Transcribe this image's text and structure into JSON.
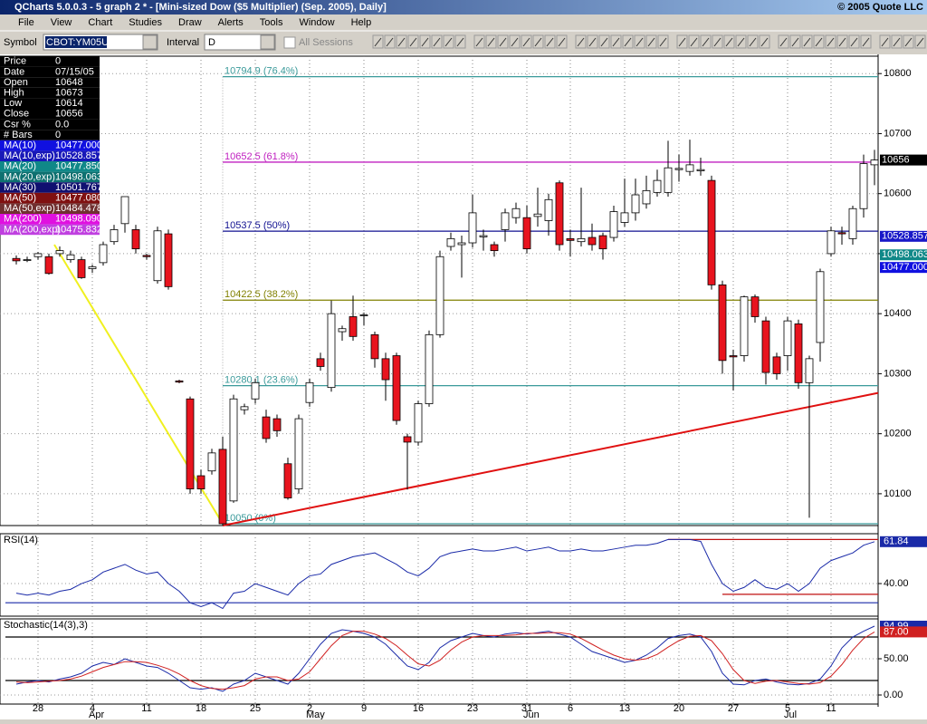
{
  "window": {
    "title": "QCharts 5.0.0.3 - 5 graph 2 * - [Mini-sized Dow ($5 Multiplier) (Sep. 2005), Daily]",
    "copyright": "© 2005 Quote LLC"
  },
  "menu": [
    "File",
    "View",
    "Chart",
    "Studies",
    "Draw",
    "Alerts",
    "Tools",
    "Window",
    "Help"
  ],
  "toolbar": {
    "symbol_label": "Symbol",
    "symbol": "CBOT:YM05U",
    "interval_label": "Interval",
    "interval": "D",
    "sessions": "All Sessions"
  },
  "info_panel": [
    {
      "label": "Price",
      "value": "0",
      "color": "#000000"
    },
    {
      "label": "Date",
      "value": "07/15/05",
      "color": "#000000"
    },
    {
      "label": "Open",
      "value": "10648",
      "color": "#000000"
    },
    {
      "label": "High",
      "value": "10673",
      "color": "#000000"
    },
    {
      "label": "Low",
      "value": "10614",
      "color": "#000000"
    },
    {
      "label": "Close",
      "value": "10656",
      "color": "#000000"
    },
    {
      "label": "Csr %",
      "value": "0.0",
      "color": "#000000"
    },
    {
      "label": "# Bars",
      "value": "0",
      "color": "#000000"
    },
    {
      "label": "MA(10)",
      "value": "10477.000",
      "color": "#1010e0"
    },
    {
      "label": "MA(10,exp)",
      "value": "10528.857",
      "color": "#1818b8"
    },
    {
      "label": "MA(20)",
      "value": "10477.850",
      "color": "#108888"
    },
    {
      "label": "MA(20,exp)",
      "value": "10498.063",
      "color": "#0e7070"
    },
    {
      "label": "MA(30)",
      "value": "10501.767",
      "color": "#101070"
    },
    {
      "label": "MA(50)",
      "value": "10477.080",
      "color": "#801010"
    },
    {
      "label": "MA(50,exp)",
      "value": "10484.478",
      "color": "#703030"
    },
    {
      "label": "MA(200)",
      "value": "10498.090",
      "color": "#e010e0"
    },
    {
      "label": "MA(200,exp)",
      "value": "10475.832",
      "color": "#c040e0"
    }
  ],
  "chart_data": [
    {
      "type": "candlestick",
      "categories": [
        null,
        null,
        "28",
        null,
        null,
        null,
        null,
        "4",
        null,
        null,
        null,
        null,
        "11",
        null,
        null,
        null,
        null,
        "18",
        null,
        null,
        null,
        null,
        "25",
        null,
        null,
        null,
        null,
        "2",
        null,
        null,
        null,
        null,
        "9",
        null,
        null,
        null,
        null,
        "16",
        null,
        null,
        null,
        null,
        "23",
        null,
        null,
        null,
        null,
        "31",
        null,
        null,
        null,
        "6",
        null,
        null,
        null,
        null,
        "13",
        null,
        null,
        null,
        null,
        "20",
        null,
        null,
        null,
        null,
        "27",
        null,
        null,
        null,
        null,
        "5",
        null,
        null,
        null,
        "11",
        null,
        null,
        null,
        null
      ],
      "months": [
        null,
        null,
        null,
        null,
        null,
        null,
        null,
        "Apr",
        null,
        null,
        null,
        null,
        null,
        null,
        null,
        null,
        null,
        null,
        null,
        null,
        null,
        null,
        null,
        null,
        null,
        null,
        null,
        "May",
        null,
        null,
        null,
        null,
        null,
        null,
        null,
        null,
        null,
        null,
        null,
        null,
        null,
        null,
        null,
        null,
        null,
        null,
        null,
        "Jun",
        null,
        null,
        null,
        null,
        null,
        null,
        null,
        null,
        null,
        null,
        null,
        null,
        null,
        null,
        null,
        null,
        null,
        null,
        null,
        null,
        null,
        null,
        null,
        "Jul",
        null,
        null,
        null,
        null,
        null,
        null,
        null,
        null
      ],
      "open": [
        10492,
        10490,
        10495,
        10495,
        10500,
        10490,
        10490,
        10475,
        10485,
        10520,
        10550,
        10540,
        10497,
        10455,
        10533,
        10288,
        10258,
        10130,
        10138,
        10174,
        10088,
        10240,
        10258,
        10228,
        10225,
        10150,
        10108,
        10252,
        10325,
        10277,
        10370,
        10395,
        10397,
        10365,
        10325,
        10330,
        10195,
        10186,
        10250,
        10365,
        10512,
        10515,
        10518,
        10528,
        10515,
        10540,
        10560,
        10560,
        10562,
        10555,
        10618,
        10525,
        10520,
        10527,
        10530,
        10527,
        10552,
        10568,
        10583,
        10602,
        10602,
        10640,
        10637,
        10638,
        10622,
        10448,
        10330,
        10330,
        10428,
        10388,
        10328,
        10330,
        10383,
        10285,
        10352,
        10500,
        10535,
        10525,
        10575,
        10648
      ],
      "high": [
        10497,
        10495,
        10503,
        10500,
        10512,
        10505,
        10495,
        10482,
        10520,
        10548,
        10590,
        10548,
        10500,
        10545,
        10540,
        10290,
        10262,
        10140,
        10175,
        10195,
        10265,
        10250,
        10292,
        10240,
        10232,
        10160,
        10232,
        10292,
        10335,
        10422,
        10380,
        10430,
        10402,
        10370,
        10335,
        10335,
        10200,
        10255,
        10372,
        10505,
        10535,
        10530,
        10598,
        10540,
        10520,
        10575,
        10585,
        10580,
        10610,
        10600,
        10622,
        10540,
        10610,
        10550,
        10535,
        10580,
        10625,
        10625,
        10630,
        10640,
        10688,
        10665,
        10690,
        10660,
        10630,
        10455,
        10340,
        10430,
        10432,
        10395,
        10335,
        10395,
        10390,
        10330,
        10475,
        10545,
        10545,
        10580,
        10665,
        10673
      ],
      "low": [
        10482,
        10486,
        10490,
        10465,
        10495,
        10485,
        10458,
        10468,
        10480,
        10515,
        10535,
        10500,
        10490,
        10450,
        10440,
        10284,
        10100,
        10100,
        10132,
        10047,
        10085,
        10232,
        10250,
        10185,
        10195,
        10090,
        10100,
        10245,
        10305,
        10270,
        10355,
        10355,
        10380,
        10310,
        10255,
        10215,
        10107,
        10180,
        10245,
        10360,
        10505,
        10460,
        10510,
        10505,
        10495,
        10520,
        10550,
        10500,
        10545,
        10530,
        10505,
        10495,
        10512,
        10505,
        10490,
        10520,
        10545,
        10555,
        10575,
        10595,
        10595,
        10620,
        10630,
        10630,
        10440,
        10300,
        10272,
        10320,
        10385,
        10282,
        10290,
        10305,
        10275,
        10060,
        10320,
        10495,
        10515,
        10515,
        10560,
        10614
      ],
      "close": [
        10488,
        10490,
        10500,
        10467,
        10505,
        10498,
        10460,
        10478,
        10515,
        10540,
        10595,
        10508,
        10495,
        10538,
        10445,
        10286,
        10108,
        10108,
        10168,
        10050,
        10258,
        10245,
        10285,
        10192,
        10205,
        10093,
        10225,
        10285,
        10312,
        10400,
        10375,
        10362,
        10398,
        10325,
        10290,
        10222,
        10186,
        10250,
        10365,
        10495,
        10525,
        10518,
        10568,
        10530,
        10505,
        10568,
        10575,
        10508,
        10566,
        10590,
        10515,
        10522,
        10525,
        10515,
        10508,
        10570,
        10568,
        10598,
        10605,
        10622,
        10643,
        10642,
        10648,
        10640,
        10448,
        10322,
        10328,
        10428,
        10395,
        10302,
        10300,
        10388,
        10285,
        10325,
        10470,
        10538,
        10533,
        10575,
        10650,
        10656
      ],
      "up_color": "#ffffff",
      "down_color": "#e8141e",
      "ylim": [
        10047,
        10829
      ],
      "yticks": [
        10100,
        10200,
        10300,
        10400,
        10500,
        10600,
        10700,
        10800
      ],
      "fib_levels": [
        {
          "value": 10794.9,
          "label": "10794.9 (76.4%)",
          "color": "#3a9a9a"
        },
        {
          "value": 10652.5,
          "label": "10652.5 (61.8%)",
          "color": "#c020c0"
        },
        {
          "value": 10537.5,
          "label": "10537.5 (50%)",
          "color": "#101090"
        },
        {
          "value": 10422.5,
          "label": "10422.5 (38.2%)",
          "color": "#808000"
        },
        {
          "value": 10280.1,
          "label": "10280.1 (23.6%)",
          "color": "#3a9a9a"
        },
        {
          "value": 10050,
          "label": "10050 (0%)",
          "color": "#3a9a9a"
        }
      ],
      "price_labels": [
        {
          "value": 10656,
          "label": "10656",
          "color": "#000000"
        },
        {
          "value": 10528.857,
          "label": "10528.857",
          "color": "#1818c8"
        },
        {
          "value": 10498.063,
          "label": "10498.063",
          "color": "#108888"
        },
        {
          "value": 10477,
          "label": "10477.000",
          "color": "#1010e0"
        }
      ],
      "trendlines": [
        {
          "x": [
            3.5,
            19
          ],
          "y": [
            10515,
            10050
          ],
          "color": "#f0f020"
        },
        {
          "x": [
            19,
            80
          ],
          "y": [
            10047,
            10268
          ],
          "color": "#e01010"
        }
      ]
    },
    {
      "type": "line",
      "title": "RSI(14)",
      "series": [
        {
          "name": "RSI",
          "color": "#1a2aa8",
          "values": [
            35,
            34,
            35,
            34,
            36,
            37,
            40,
            42,
            46,
            48,
            50,
            47,
            45,
            46,
            40,
            36,
            30,
            28,
            30,
            27,
            35,
            36,
            40,
            38,
            36,
            34,
            40,
            44,
            45,
            50,
            52,
            54,
            55,
            56,
            53,
            50,
            46,
            44,
            48,
            54,
            56,
            57,
            58,
            57,
            57,
            58,
            59,
            57,
            58,
            59,
            57,
            57,
            58,
            57,
            57,
            58,
            59,
            60,
            60,
            61,
            63,
            63,
            63,
            62,
            50,
            40,
            36,
            38,
            42,
            38,
            37,
            40,
            36,
            40,
            48,
            52,
            54,
            56,
            60,
            61.84
          ]
        }
      ],
      "value_labels": [
        "61.84"
      ],
      "levels": [
        {
          "value": 30,
          "color": "#1a2aa8",
          "x": [
            -1,
            80
          ]
        },
        {
          "value": 63,
          "color": "#c01010",
          "x": [
            60,
            80
          ]
        },
        {
          "value": 34.4,
          "color": "#c01010",
          "x": [
            65,
            80
          ]
        }
      ],
      "ylim": [
        23,
        66
      ],
      "yticks": [
        {
          "value": 40,
          "label": "40.00"
        }
      ]
    },
    {
      "type": "line",
      "title": "Stochastic(14(3),3)",
      "series": [
        {
          "name": "%K",
          "color": "#1a2aa8",
          "values": [
            15,
            18,
            20,
            18,
            22,
            25,
            30,
            40,
            45,
            42,
            50,
            45,
            40,
            38,
            30,
            20,
            10,
            8,
            10,
            5,
            15,
            20,
            30,
            25,
            20,
            15,
            30,
            50,
            70,
            85,
            90,
            88,
            85,
            80,
            70,
            55,
            40,
            35,
            45,
            65,
            75,
            80,
            85,
            82,
            80,
            84,
            86,
            84,
            86,
            88,
            84,
            80,
            70,
            60,
            55,
            50,
            45,
            48,
            55,
            65,
            78,
            82,
            84,
            80,
            60,
            30,
            15,
            14,
            20,
            22,
            18,
            15,
            14,
            16,
            22,
            40,
            65,
            80,
            88,
            94.99
          ]
        },
        {
          "name": "%D",
          "color": "#d02020",
          "values": [
            18,
            17,
            18,
            19,
            20,
            22,
            26,
            32,
            38,
            42,
            46,
            46,
            45,
            41,
            36,
            29,
            20,
            13,
            9,
            8,
            10,
            13,
            22,
            25,
            25,
            20,
            22,
            32,
            50,
            68,
            82,
            88,
            88,
            84,
            78,
            68,
            55,
            43,
            40,
            48,
            62,
            73,
            80,
            82,
            82,
            82,
            83,
            85,
            85,
            86,
            86,
            84,
            78,
            70,
            62,
            55,
            50,
            48,
            50,
            56,
            66,
            75,
            81,
            82,
            75,
            57,
            35,
            20,
            16,
            19,
            20,
            18,
            16,
            15,
            17,
            26,
            42,
            62,
            78,
            87
          ]
        }
      ],
      "value_labels": [
        "94.99",
        "87.00"
      ],
      "levels": [
        {
          "value": 80,
          "color": "#000000",
          "x": [
            -1,
            80
          ]
        },
        {
          "value": 20,
          "color": "#000000",
          "x": [
            -1,
            80
          ]
        }
      ],
      "ylim": [
        -12.5,
        105
      ],
      "yticks": [
        {
          "value": 0,
          "label": "0.00"
        },
        {
          "value": 50,
          "label": "50.00"
        }
      ]
    }
  ]
}
